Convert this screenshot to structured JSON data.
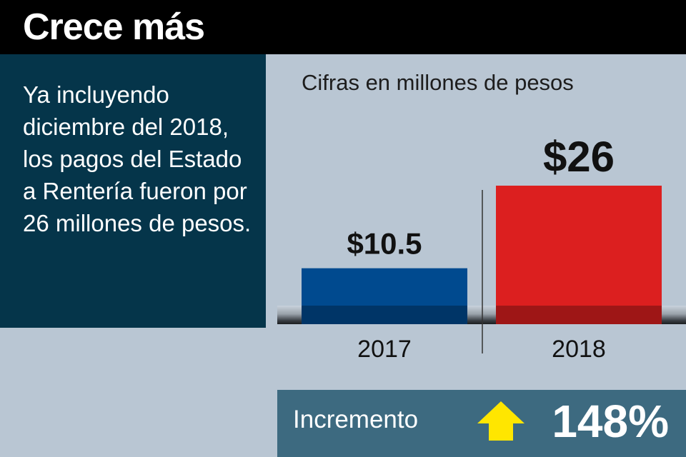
{
  "header": {
    "title": "Crece más"
  },
  "side_panel": {
    "text": "Ya incluyendo diciembre del 2018, los pagos del Estado a Rentería fueron por 26 millones de pesos."
  },
  "chart_data": {
    "type": "bar",
    "subtitle": "Cifras en millones de pesos",
    "categories": [
      "2017",
      "2018"
    ],
    "values": [
      10.5,
      26
    ],
    "value_labels": [
      "$10.5",
      "$26"
    ],
    "colors": [
      "#004a8f",
      "#dc1f1f"
    ],
    "ylim": [
      0,
      26
    ],
    "grid": false,
    "legend": "none"
  },
  "footer": {
    "label": "Incremento",
    "value": "148%",
    "arrow_icon": "up-arrow-icon",
    "arrow_color": "#ffe600"
  }
}
